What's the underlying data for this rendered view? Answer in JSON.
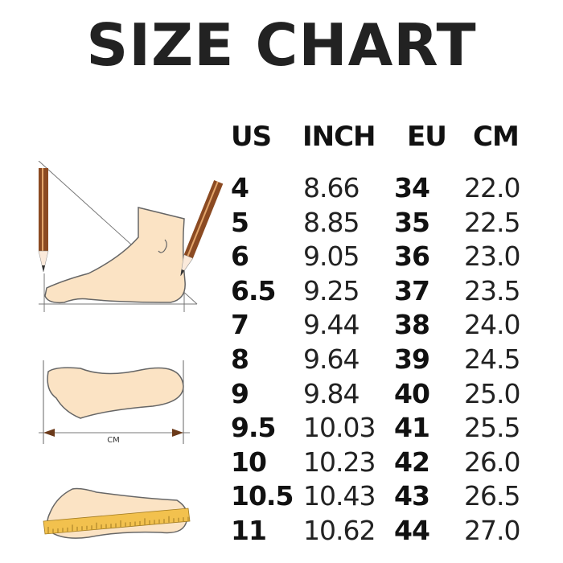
{
  "title": "SIZE CHART",
  "columns": [
    "US",
    "INCH",
    "EU",
    "CM"
  ],
  "rows": [
    [
      "4",
      "8.66",
      "34",
      "22.0"
    ],
    [
      "5",
      "8.85",
      "35",
      "22.5"
    ],
    [
      "6",
      "9.05",
      "36",
      "23.0"
    ],
    [
      "6.5",
      "9.25",
      "37",
      "23.5"
    ],
    [
      "7",
      "9.44",
      "38",
      "24.0"
    ],
    [
      "8",
      "9.64",
      "39",
      "24.5"
    ],
    [
      "9",
      "9.84",
      "40",
      "25.0"
    ],
    [
      "9.5",
      "10.03",
      "41",
      "25.5"
    ],
    [
      "10",
      "10.23",
      "42",
      "26.0"
    ],
    [
      "10.5",
      "10.43",
      "43",
      "26.5"
    ],
    [
      "11",
      "10.62",
      "44",
      "27.0"
    ]
  ],
  "illustration": {
    "measure_label": "CM",
    "foot_color": "#fbe3c4",
    "outline_color": "#6b6b6b",
    "pencil_color": "#8b4a22",
    "ruler_color": "#f2c14e"
  }
}
